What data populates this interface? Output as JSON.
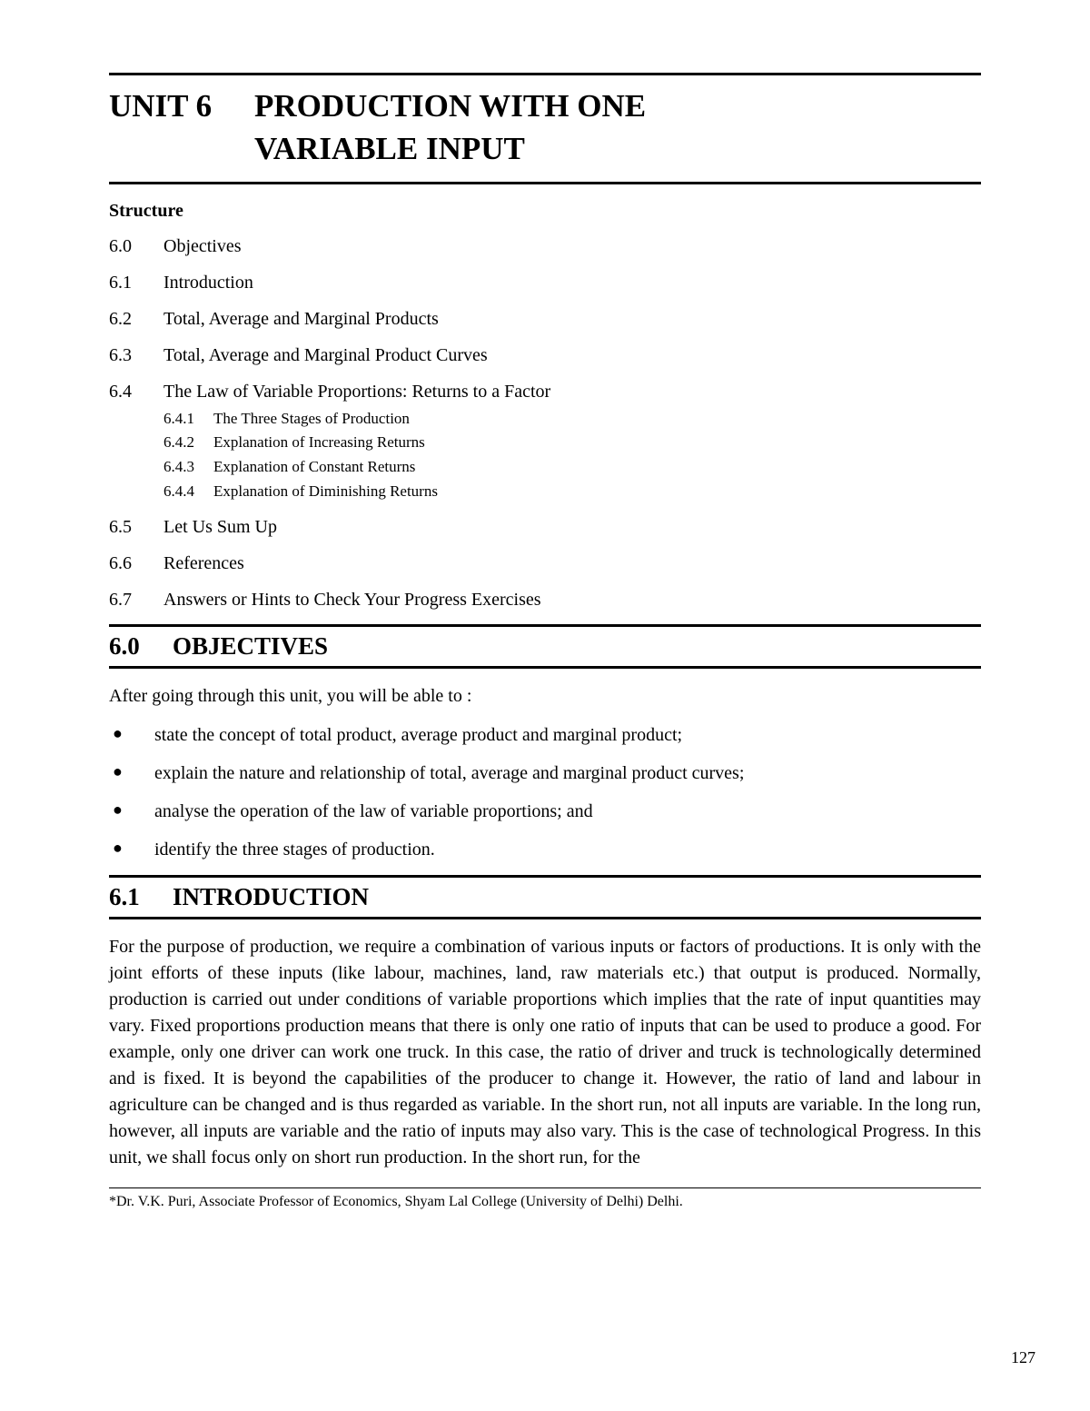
{
  "unit": {
    "number": "UNIT 6",
    "title_line1": "PRODUCTION WITH ONE",
    "title_line2": "VARIABLE INPUT"
  },
  "structure": {
    "heading": "Structure",
    "items": [
      {
        "num": "6.0",
        "label": "Objectives"
      },
      {
        "num": "6.1",
        "label": "Introduction"
      },
      {
        "num": "6.2",
        "label": "Total, Average and Marginal Products"
      },
      {
        "num": "6.3",
        "label": "Total, Average and Marginal Product Curves"
      },
      {
        "num": "6.4",
        "label": "The Law of Variable Proportions: Returns to a Factor"
      },
      {
        "num": "6.5",
        "label": "Let Us Sum Up"
      },
      {
        "num": "6.6",
        "label": "References"
      },
      {
        "num": "6.7",
        "label": "Answers or Hints to Check Your Progress Exercises"
      }
    ],
    "subitems": [
      {
        "num": "6.4.1",
        "label": "The Three Stages of Production"
      },
      {
        "num": "6.4.2",
        "label": "Explanation of Increasing Returns"
      },
      {
        "num": "6.4.3",
        "label": "Explanation of Constant Returns"
      },
      {
        "num": "6.4.4",
        "label": "Explanation of Diminishing Returns"
      }
    ]
  },
  "sections": {
    "objectives": {
      "num": "6.0",
      "title": "OBJECTIVES",
      "intro": "After going through this unit, you will be able to :",
      "bullets": [
        "state the concept of total product, average product and marginal product;",
        "explain the nature and relationship of total, average and marginal product curves;",
        "analyse the operation of the law of variable proportions; and",
        "identify the three stages of production."
      ]
    },
    "introduction": {
      "num": "6.1",
      "title": "INTRODUCTION",
      "paragraph": "For the purpose of production, we require a combination of various inputs or factors of productions. It is only with the joint efforts of these inputs (like labour, machines, land, raw materials etc.) that output is produced. Normally, production is carried out under conditions of variable proportions which implies that the rate of input quantities may vary. Fixed proportions production means that there is only one ratio of inputs that can be used to produce a good. For example, only one driver can work one truck. In this case, the ratio of driver and truck is technologically determined and is fixed. It is beyond the capabilities of the producer to change it. However, the ratio of land and labour in agriculture can be changed and is thus regarded as variable. In the short run, not all inputs are variable. In the long run, however, all inputs are variable and the ratio of inputs may also vary.  This is the case of technological Progress.  In this  unit,  we shall focus only on short run production.  In the short run, for the"
    }
  },
  "footnote": "*Dr. V.K. Puri, Associate Professor of Economics, Shyam Lal College (University of Delhi) Delhi.",
  "page_number": "127"
}
